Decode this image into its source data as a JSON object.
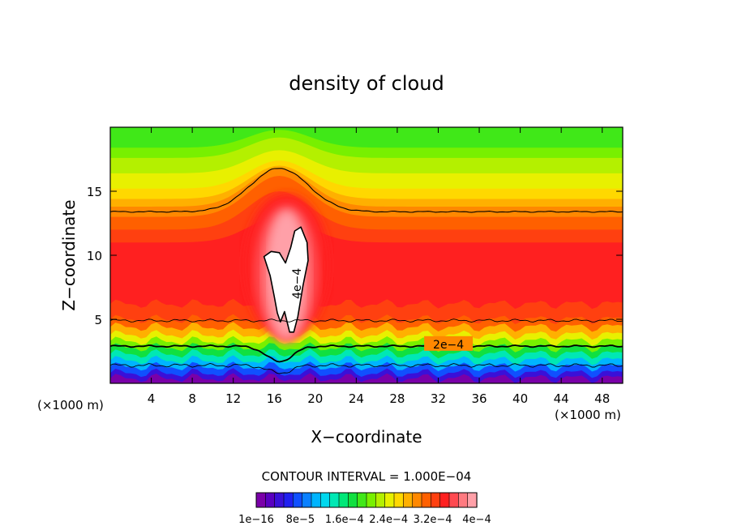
{
  "chart_data": {
    "type": "heatmap",
    "title": "density of cloud",
    "xlabel": "X−coordinate",
    "ylabel": "Z−coordinate",
    "x_unit_label": "(×1000 m)",
    "x_range": [
      0,
      50
    ],
    "z_range": [
      0,
      20
    ],
    "x_ticks": [
      4,
      8,
      12,
      16,
      20,
      24,
      28,
      32,
      36,
      40,
      44,
      48
    ],
    "x_tick_labels": [
      "4",
      "8",
      "12",
      "16",
      "20",
      "24",
      "28",
      "32",
      "36",
      "40",
      "44",
      "48"
    ],
    "z_ticks": [
      5,
      10,
      15
    ],
    "z_tick_labels": [
      "5",
      "10",
      "15"
    ],
    "contour_interval_text": "CONTOUR INTERVAL = 1.000E−04",
    "contour_labels": [
      "4e−4",
      "2e−4"
    ],
    "contour_levels": [
      0.0001,
      0.0002,
      0.0003,
      0.0004
    ],
    "colorbar": {
      "tick_labels": [
        "1e−16",
        "8e−5",
        "1.6e−4",
        "2.4e−4",
        "3.2e−4",
        "4e−4"
      ],
      "tick_values": [
        1e-16,
        8e-05,
        0.00016,
        0.00024,
        0.00032,
        0.0004
      ],
      "colors": [
        "#7a00a8",
        "#5a00c0",
        "#3a10d8",
        "#2020f0",
        "#1050ff",
        "#0a80ff",
        "#00b4ff",
        "#00d8ee",
        "#00e8b4",
        "#00e878",
        "#10e040",
        "#40e818",
        "#78f000",
        "#b4f000",
        "#e8f000",
        "#ffd800",
        "#ffb000",
        "#ff8800",
        "#ff6000",
        "#ff4010",
        "#ff2020",
        "#ff4a50",
        "#ff7a80",
        "#ffa0a8"
      ]
    }
  }
}
